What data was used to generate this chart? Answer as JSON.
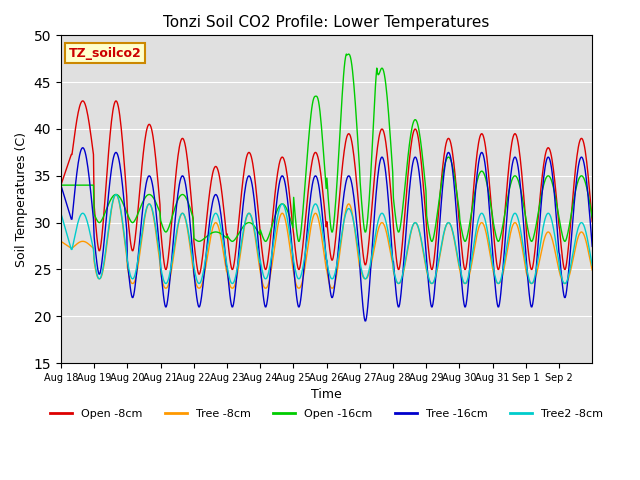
{
  "title": "Tonzi Soil CO2 Profile: Lower Temperatures",
  "xlabel": "Time",
  "ylabel": "Soil Temperatures (C)",
  "ylim": [
    15,
    50
  ],
  "yticks": [
    15,
    20,
    25,
    30,
    35,
    40,
    45,
    50
  ],
  "annotation_text": "TZ_soilco2",
  "annotation_color": "#cc0000",
  "annotation_bg": "#ffffcc",
  "annotation_border": "#cc8800",
  "series_colors": {
    "Open -8cm": "#dd0000",
    "Tree -8cm": "#ff9900",
    "Open -16cm": "#00cc00",
    "Tree -16cm": "#0000cc",
    "Tree2 -8cm": "#00cccc"
  },
  "background_color": "#e0e0e0",
  "xtick_labels": [
    "Aug 18",
    "Aug 19",
    "Aug 20",
    "Aug 21",
    "Aug 22",
    "Aug 23",
    "Aug 24",
    "Aug 25",
    "Aug 26",
    "Aug 27",
    "Aug 28",
    "Aug 29",
    "Aug 30",
    "Aug 31",
    "Sep 1",
    "Sep 2"
  ]
}
